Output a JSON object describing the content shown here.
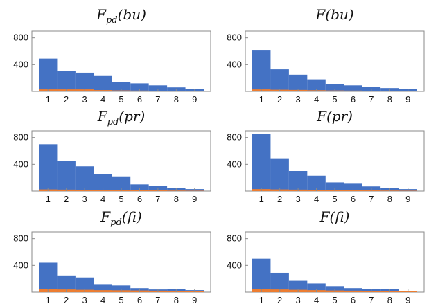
{
  "chart_data": [
    {
      "type": "bar",
      "title_main": "F",
      "title_sub": "pd",
      "title_arg": "(bu)",
      "categories": [
        "1",
        "2",
        "3",
        "4",
        "5",
        "6",
        "7",
        "8",
        "9"
      ],
      "y_ticks": [
        "400",
        "800"
      ],
      "ylim": [
        0,
        900
      ],
      "series": [
        {
          "values": [
            490,
            300,
            280,
            230,
            140,
            120,
            90,
            60,
            35
          ],
          "color": "#4472C4"
        },
        {
          "values": [
            30,
            30,
            30,
            20,
            15,
            12,
            10,
            8,
            6
          ],
          "color": "#ED7D31"
        }
      ]
    },
    {
      "type": "bar",
      "title_main": "F",
      "title_sub": "",
      "title_arg": "(bu)",
      "categories": [
        "1",
        "2",
        "3",
        "4",
        "5",
        "6",
        "7",
        "8",
        "9"
      ],
      "y_ticks": [
        "400",
        "800"
      ],
      "ylim": [
        0,
        900
      ],
      "series": [
        {
          "values": [
            620,
            330,
            250,
            180,
            110,
            90,
            70,
            50,
            40
          ],
          "color": "#4472C4"
        },
        {
          "values": [
            30,
            25,
            22,
            18,
            14,
            12,
            10,
            8,
            6
          ],
          "color": "#ED7D31"
        }
      ]
    },
    {
      "type": "bar",
      "title_main": "F",
      "title_sub": "pd",
      "title_arg": "(pr)",
      "categories": [
        "1",
        "2",
        "3",
        "4",
        "5",
        "6",
        "7",
        "8",
        "9"
      ],
      "y_ticks": [
        "400",
        "800"
      ],
      "ylim": [
        0,
        900
      ],
      "series": [
        {
          "values": [
            700,
            450,
            370,
            250,
            220,
            100,
            80,
            50,
            30
          ],
          "color": "#4472C4"
        },
        {
          "values": [
            25,
            22,
            20,
            18,
            15,
            12,
            10,
            8,
            6
          ],
          "color": "#ED7D31"
        }
      ]
    },
    {
      "type": "bar",
      "title_main": "F",
      "title_sub": "",
      "title_arg": "(pr)",
      "categories": [
        "1",
        "2",
        "3",
        "4",
        "5",
        "6",
        "7",
        "8",
        "9"
      ],
      "y_ticks": [
        "400",
        "800"
      ],
      "ylim": [
        0,
        900
      ],
      "series": [
        {
          "values": [
            850,
            490,
            300,
            230,
            130,
            110,
            70,
            50,
            30
          ],
          "color": "#4472C4"
        },
        {
          "values": [
            30,
            25,
            22,
            18,
            14,
            12,
            10,
            8,
            6
          ],
          "color": "#ED7D31"
        }
      ]
    },
    {
      "type": "bar",
      "title_main": "F",
      "title_sub": "pd",
      "title_arg": "(fi)",
      "categories": [
        "1",
        "2",
        "3",
        "4",
        "5",
        "6",
        "7",
        "8",
        "9"
      ],
      "y_ticks": [
        "400",
        "800"
      ],
      "ylim": [
        0,
        900
      ],
      "series": [
        {
          "values": [
            440,
            250,
            220,
            120,
            100,
            60,
            40,
            50,
            30
          ],
          "color": "#4472C4"
        },
        {
          "values": [
            45,
            40,
            35,
            30,
            28,
            25,
            22,
            20,
            18
          ],
          "color": "#ED7D31"
        }
      ]
    },
    {
      "type": "bar",
      "title_main": "F",
      "title_sub": "",
      "title_arg": "(fi)",
      "categories": [
        "1",
        "2",
        "3",
        "4",
        "5",
        "6",
        "7",
        "8",
        "9"
      ],
      "y_ticks": [
        "400",
        "800"
      ],
      "ylim": [
        0,
        900
      ],
      "series": [
        {
          "values": [
            500,
            290,
            170,
            130,
            90,
            60,
            50,
            50,
            20
          ],
          "color": "#4472C4"
        },
        {
          "values": [
            45,
            40,
            35,
            30,
            25,
            22,
            20,
            18,
            15
          ],
          "color": "#ED7D31"
        }
      ]
    }
  ]
}
